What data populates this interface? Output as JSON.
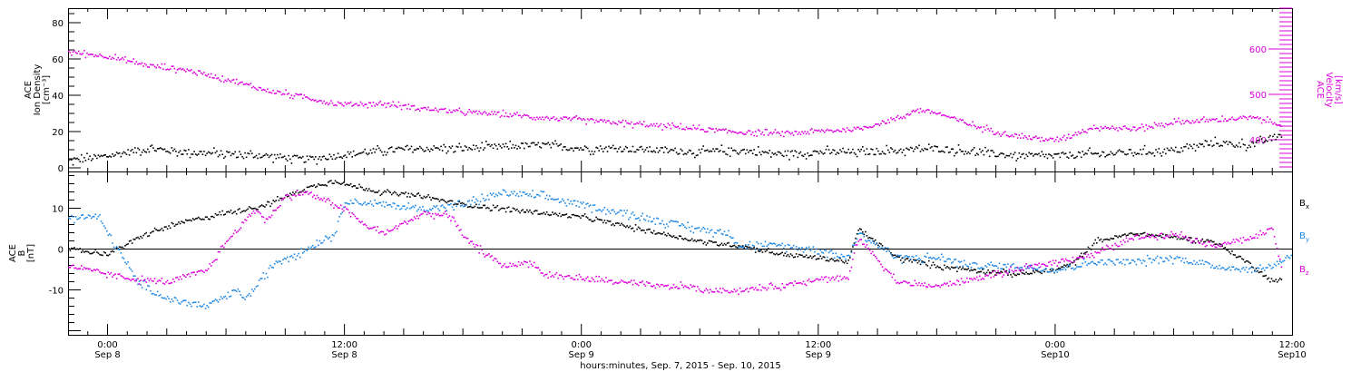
{
  "colors": {
    "black": "#000000",
    "magenta": "#dd00dd",
    "blue": "#1e88e5"
  },
  "chart_data": [
    {
      "type": "scatter",
      "panel": "top",
      "ylabel_lines": [
        "ACE",
        "Ion Density",
        "[cm⁻³]"
      ],
      "y2label_lines": [
        "ACE",
        "Velocity",
        "[km/s]"
      ],
      "y_ticks": [
        "0",
        "20",
        "40",
        "60",
        "80"
      ],
      "y_tick_values": [
        0,
        20,
        40,
        60,
        80
      ],
      "y2_ticks": [
        "400",
        "500",
        "600"
      ],
      "y2_tick_values": [
        400,
        500,
        600
      ],
      "ylim": [
        -2,
        88
      ],
      "y2lim": [
        330,
        690
      ],
      "x_unit": "hours since 00:00 Sep 8, 2015",
      "xlim": [
        -2,
        60
      ],
      "series": [
        {
          "key": "density",
          "axis": "left",
          "color": "#000000",
          "x": [
            -2,
            0,
            2,
            4,
            6,
            8,
            10,
            11.5,
            14,
            16,
            18,
            20,
            22,
            24,
            26,
            28,
            30,
            32,
            34,
            36,
            38,
            40,
            42,
            44,
            46,
            48,
            50,
            52,
            54,
            56,
            58,
            59.5
          ],
          "y": [
            4,
            7,
            11,
            9,
            8,
            7,
            5,
            7,
            10,
            11,
            11,
            12,
            13,
            11,
            11,
            10,
            9,
            10,
            8,
            9,
            9,
            10,
            11,
            9,
            7,
            7,
            8,
            9,
            10,
            14,
            13,
            19
          ],
          "scatter": 3.5
        },
        {
          "key": "velocity",
          "axis": "right",
          "color": "#dd00dd",
          "x": [
            -2,
            0,
            2,
            4,
            6,
            8,
            10,
            11.5,
            14,
            16,
            18,
            20,
            22,
            24,
            26,
            28,
            30,
            32,
            34,
            36,
            38,
            40,
            41,
            42,
            44,
            46,
            48,
            50,
            52,
            54,
            56,
            58,
            59.5
          ],
          "y": [
            595,
            585,
            565,
            555,
            535,
            510,
            495,
            480,
            480,
            470,
            462,
            458,
            450,
            445,
            438,
            432,
            425,
            418,
            415,
            420,
            425,
            448,
            468,
            460,
            430,
            410,
            400,
            430,
            425,
            440,
            445,
            450,
            435
          ],
          "scatter": 9
        }
      ]
    },
    {
      "type": "scatter",
      "panel": "bottom",
      "ylabel_lines": [
        "ACE",
        "B",
        "[nT]"
      ],
      "y_ticks": [
        "-10",
        "0",
        "10"
      ],
      "y_tick_values": [
        -10,
        0,
        10
      ],
      "ylim": [
        -21,
        19
      ],
      "zero_line": true,
      "legend": [
        "Bx",
        "By",
        "Bz"
      ],
      "legend_position": "right",
      "xlim": [
        -2,
        60
      ],
      "x_tick_labels": [
        {
          "x": 0,
          "time": "0:00",
          "date": "Sep 8"
        },
        {
          "x": 12,
          "time": "12:00",
          "date": "Sep 8"
        },
        {
          "x": 24,
          "time": "0:00",
          "date": "Sep 9"
        },
        {
          "x": 36,
          "time": "12:00",
          "date": "Sep 9"
        },
        {
          "x": 48,
          "time": "0:00",
          "date": "Sep10"
        },
        {
          "x": 60,
          "time": "12:00",
          "date": "Sep10"
        }
      ],
      "xlabel": "hours:minutes, Sep.  7, 2015 - Sep. 10, 2015",
      "series": [
        {
          "key": "bx",
          "color": "#000000",
          "x": [
            -2,
            0,
            2,
            4,
            6,
            8,
            10,
            11.5,
            12,
            14,
            16,
            18,
            20,
            22,
            24,
            26,
            28,
            30,
            32,
            34,
            36,
            37.5,
            38,
            40,
            42,
            44,
            46,
            48,
            49,
            50,
            52,
            54,
            56,
            58,
            59,
            59.5
          ],
          "y": [
            0,
            -1,
            4,
            7,
            9,
            11,
            15,
            17,
            16,
            14,
            13,
            11,
            10,
            9,
            8,
            6,
            4,
            2,
            1,
            -1,
            -2,
            -3,
            5,
            -2,
            -4,
            -5,
            -6,
            -5,
            -3,
            2,
            4,
            3,
            2,
            -4,
            -8,
            -7
          ],
          "scatter": 0.9
        },
        {
          "key": "by",
          "color": "#1e88e5",
          "x": [
            -2,
            -0.5,
            0.5,
            1.5,
            3,
            5,
            6.5,
            7,
            8.5,
            10,
            11.5,
            12,
            14,
            16,
            18,
            20,
            22,
            24,
            26,
            28,
            30,
            31.5,
            32,
            34,
            36,
            37.5,
            38,
            40,
            42,
            44,
            46,
            48,
            50,
            52,
            54,
            56,
            58,
            59,
            60
          ],
          "y": [
            8,
            8,
            0,
            -8,
            -12,
            -14,
            -10,
            -12,
            -3,
            0,
            4,
            12,
            11,
            10,
            11,
            14,
            13,
            11,
            9,
            7,
            5,
            4,
            1,
            1,
            0,
            -2,
            4,
            -2,
            -2,
            -4,
            -4,
            -5,
            -3,
            -3,
            -2,
            -4,
            -5,
            -4,
            -1
          ],
          "scatter": 1.4
        },
        {
          "key": "bz",
          "color": "#dd00dd",
          "x": [
            -2,
            0,
            1,
            3,
            5,
            6,
            7.5,
            8,
            9,
            10,
            11,
            12,
            13,
            14,
            16,
            17.5,
            18,
            20,
            21.5,
            22,
            24,
            26,
            28,
            29.5,
            30,
            32,
            34,
            36,
            37.5,
            38,
            40,
            42,
            44,
            46,
            48,
            50,
            52,
            54,
            56,
            58,
            59,
            59.5
          ],
          "y": [
            -4,
            -6,
            -7,
            -8,
            -5,
            2,
            10,
            7,
            13,
            14,
            12,
            10,
            6,
            4,
            9,
            8,
            3,
            -4,
            -3,
            -6,
            -7,
            -8,
            -9,
            -9,
            -10,
            -10,
            -9,
            -7,
            -7,
            3,
            -8,
            -9,
            -7,
            -5,
            -3,
            -1,
            3,
            4,
            1,
            3,
            5,
            -6
          ],
          "scatter": 1.1
        }
      ]
    }
  ]
}
